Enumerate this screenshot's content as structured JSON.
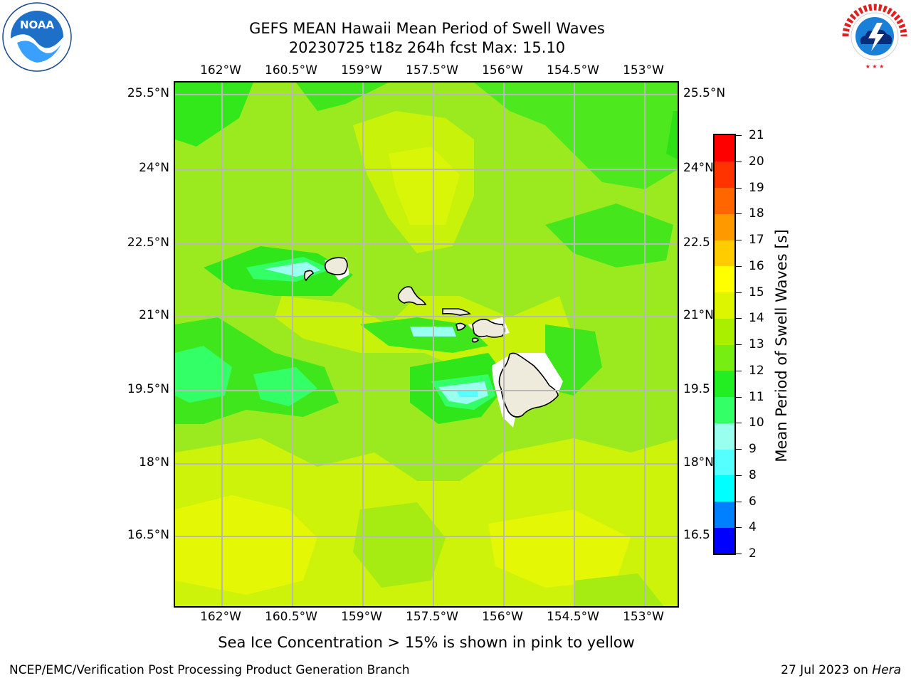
{
  "title": "GEFS MEAN Hawaii Mean Period of Swell Waves",
  "subtitle": "20230725 t18z 264h fcst   Max: 15.10",
  "map": {
    "lon_ticks": [
      "162°W",
      "160.5°W",
      "159°W",
      "157.5°W",
      "156°W",
      "154.5°W",
      "153°W"
    ],
    "lat_ticks": [
      "25.5°N",
      "24°N",
      "22.5°N",
      "21°N",
      "19.5°N",
      "18°N",
      "16.5°N"
    ],
    "lat_ticks_right": [
      "25.5°N",
      "24°N",
      "22.5",
      "21°N",
      "19.5",
      "18°N",
      "16.5"
    ],
    "islands": [
      "Kauai",
      "Niihau",
      "Oahu",
      "Molokai",
      "Lanai",
      "Maui",
      "Kahoolawe",
      "Hawaii"
    ]
  },
  "colorbar": {
    "title": "Mean Period of Swell Waves [s]",
    "levels": [
      2,
      4,
      6,
      8,
      9,
      10,
      11,
      12,
      13,
      14,
      15,
      16,
      17,
      18,
      19,
      20,
      21
    ],
    "colors": [
      "#0000ff",
      "#0080ff",
      "#00ffff",
      "#55ffff",
      "#99ffee",
      "#33ff66",
      "#22ee22",
      "#77ee11",
      "#aaee00",
      "#ddf500",
      "#ffff00",
      "#ffcc00",
      "#ff9900",
      "#ff6600",
      "#ff3300",
      "#ff0000"
    ]
  },
  "caption": "Sea Ice Concentration > 15% is shown in pink to yellow",
  "footer": {
    "left": "NCEP/EMC/Verification Post Processing Product Generation Branch",
    "right_date": "27 Jul 2023 on ",
    "right_host": "Hera"
  },
  "logos": {
    "left": "NOAA",
    "right_ring": "NATIONAL WEATHER SERVICE"
  }
}
